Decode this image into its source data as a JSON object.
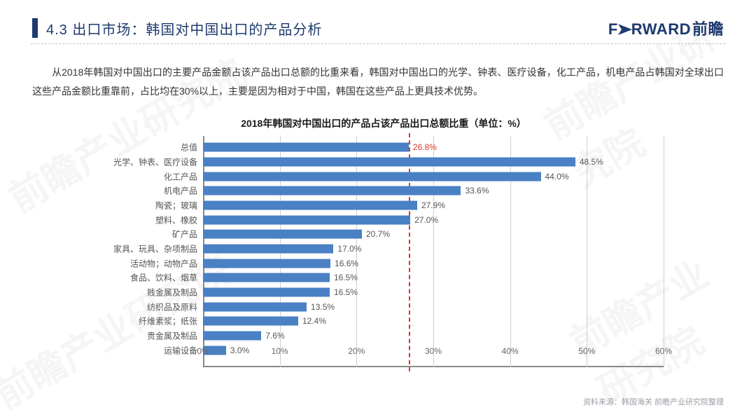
{
  "header": {
    "section_number": "4.3",
    "title": "出口市场：韩国对中国出口的产品分析",
    "logo_text": "F",
    "logo_arrow": "➤",
    "logo_rest": "RWARD",
    "logo_cn": "前瞻"
  },
  "body_text": "从2018年韩国对中国出口的主要产品金额占该产品出口总额的比重来看，韩国对中国出口的光学、钟表、医疗设备，化工产品，机电产品占韩国对全球出口这些产品金额比重靠前，占比均在30%以上，主要是因为相对于中国，韩国在这些产品上更具技术优势。",
  "chart": {
    "type": "bar-horizontal",
    "title": "2018年韩国对中国出口的产品占该产品出口总额比重（单位：%）",
    "bar_color": "#4a80c4",
    "grid_color": "#cfcfcf",
    "axis_color": "#8a8a8a",
    "ref_line_color": "#d63a2e",
    "background_color": "#ffffff",
    "label_fontsize": 12,
    "value_fontsize": 12,
    "title_fontsize": 14,
    "xlim": [
      0,
      60
    ],
    "xtick_step": 10,
    "x_ticks": [
      "0%",
      "10%",
      "20%",
      "30%",
      "40%",
      "50%",
      "60%"
    ],
    "reference_value": 26.8,
    "categories": [
      "总值",
      "光学、钟表、医疗设备",
      "化工产品",
      "机电产品",
      "陶瓷；玻璃",
      "塑料、橡胶",
      "矿产品",
      "家具、玩具、杂项制品",
      "活动物；动物产品",
      "食品、饮料、烟草",
      "贱金属及制品",
      "纺织品及原料",
      "纤维素浆；纸张",
      "贵金属及制品",
      "运输设备"
    ],
    "values": [
      26.8,
      48.5,
      44.0,
      33.6,
      27.9,
      27.0,
      20.7,
      17.0,
      16.6,
      16.5,
      16.5,
      13.5,
      12.4,
      7.6,
      3.0
    ],
    "value_labels": [
      "26.8%",
      "48.5%",
      "44.0%",
      "33.6%",
      "27.9%",
      "27.0%",
      "20.7%",
      "17.0%",
      "16.6%",
      "16.5%",
      "16.5%",
      "13.5%",
      "12.4%",
      "7.6%",
      "3.0%"
    ]
  },
  "source_text": "资料来源：韩国海关  前瞻产业研究院整理",
  "watermark_text": "前瞻产业研究院"
}
